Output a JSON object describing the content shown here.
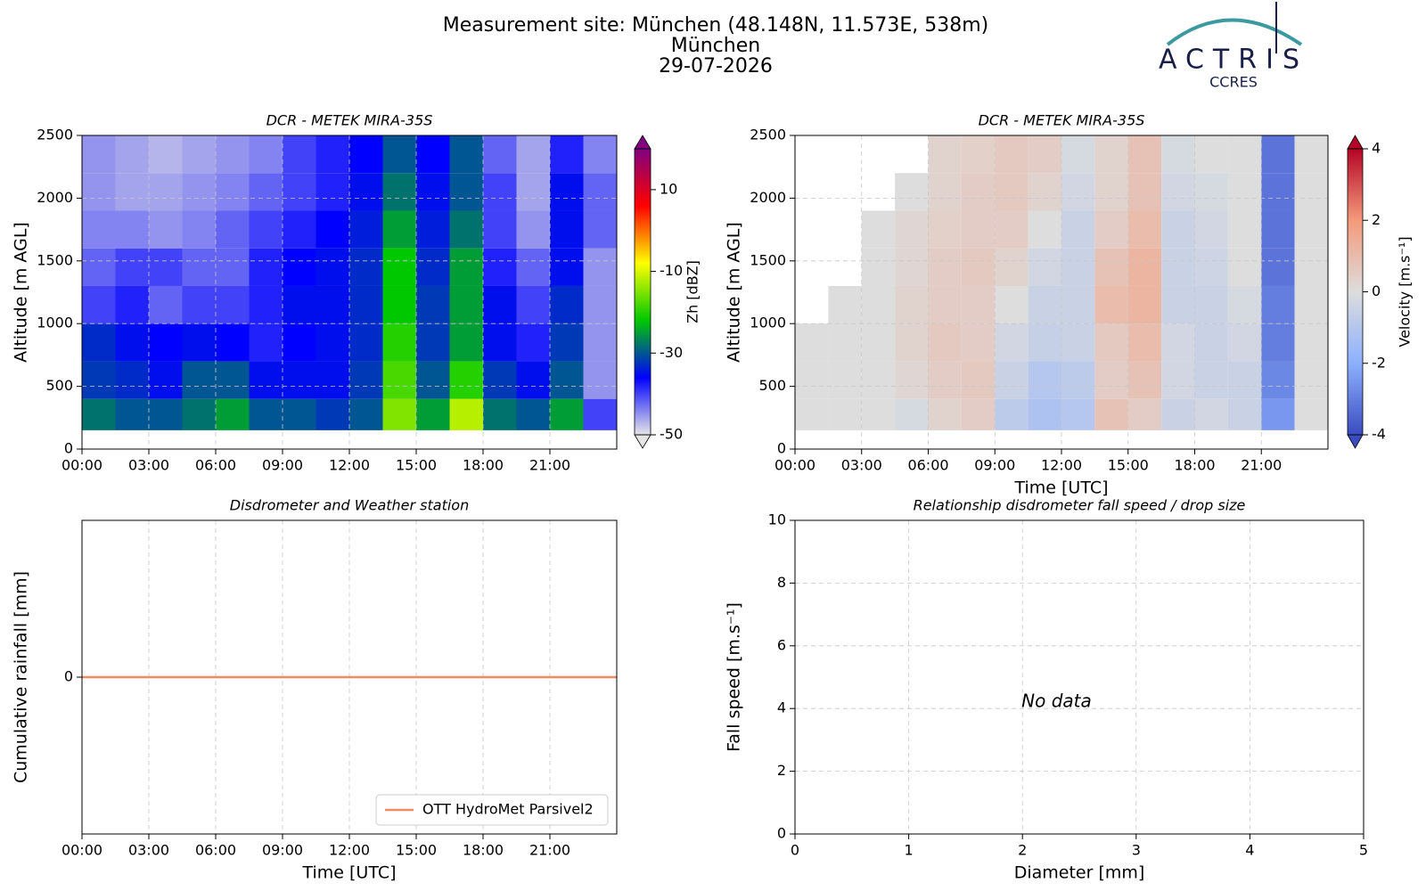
{
  "header": {
    "title_lines": [
      "Measurement site: München (48.148N, 11.573E, 538m)",
      "München",
      "29-07-2026"
    ],
    "logo": {
      "name": "ACTRIS",
      "sub": "CCRES"
    }
  },
  "chart_data": [
    {
      "type": "heatmap",
      "title": "DCR - METEK MIRA-35S",
      "ylabel": "Altitude [m AGL]",
      "colorbar_label": "Zh [dBZ]",
      "xlim": [
        0,
        24
      ],
      "xticks": [
        {
          "value": 0,
          "label": "00:00"
        },
        {
          "value": 3,
          "label": "03:00"
        },
        {
          "value": 6,
          "label": "06:00"
        },
        {
          "value": 9,
          "label": "09:00"
        },
        {
          "value": 12,
          "label": "12:00"
        },
        {
          "value": 15,
          "label": "15:00"
        },
        {
          "value": 18,
          "label": "18:00"
        },
        {
          "value": 21,
          "label": "21:00"
        }
      ],
      "ylim": [
        0,
        2500
      ],
      "yticks": [
        0,
        500,
        1000,
        1500,
        2000,
        2500
      ],
      "grid": true,
      "zlim": [
        -50,
        20
      ],
      "zticks": [
        -50,
        -30,
        -10,
        10
      ],
      "colormap": [
        "#e6e6e6",
        "#0000ff",
        "#00c800",
        "#ffff00",
        "#ff0000",
        "#800080"
      ],
      "x_edges": [
        0,
        1.5,
        3,
        4.5,
        6,
        7.5,
        9,
        10.5,
        12,
        13.5,
        15,
        16.5,
        18,
        19.5,
        21,
        22.5,
        24
      ],
      "y_edges": [
        150,
        400,
        700,
        1000,
        1300,
        1600,
        1900,
        2200,
        2500
      ],
      "z": [
        [
          -28,
          -30,
          -30,
          -28,
          -25,
          -30,
          -30,
          -32,
          -30,
          -15,
          -25,
          -12,
          -28,
          -30,
          -25,
          -40
        ],
        [
          -32,
          -33,
          -35,
          -30,
          -30,
          -35,
          -35,
          -35,
          -32,
          -18,
          -30,
          -20,
          -32,
          -35,
          -30,
          -45
        ],
        [
          -33,
          -35,
          -36,
          -35,
          -36,
          -38,
          -36,
          -35,
          -33,
          -20,
          -32,
          -25,
          -35,
          -38,
          -32,
          -45
        ],
        [
          -40,
          -38,
          -42,
          -40,
          -40,
          -38,
          -35,
          -35,
          -33,
          -22,
          -32,
          -25,
          -35,
          -40,
          -33,
          -45
        ],
        [
          -42,
          -40,
          -40,
          -42,
          -42,
          -38,
          -36,
          -35,
          -33,
          -22,
          -33,
          -25,
          -38,
          -42,
          -35,
          -45
        ],
        [
          -44,
          -44,
          -45,
          -44,
          -42,
          -40,
          -38,
          -36,
          -34,
          -25,
          -34,
          -28,
          -40,
          -45,
          -35,
          -42
        ],
        [
          -45,
          -46,
          -46,
          -45,
          -44,
          -42,
          -40,
          -38,
          -35,
          -28,
          -35,
          -30,
          -40,
          -46,
          -35,
          -42
        ],
        [
          -45,
          -46,
          -47,
          -46,
          -45,
          -44,
          -40,
          -38,
          -36,
          -30,
          -36,
          -30,
          -42,
          -46,
          -38,
          -44
        ]
      ]
    },
    {
      "type": "heatmap",
      "title": "DCR - METEK MIRA-35S",
      "ylabel": "Altitude [m AGL]",
      "xlabel": "Time [UTC]",
      "colorbar_label": "Velocity [m.s⁻¹]",
      "xlim": [
        0,
        24
      ],
      "xticks": [
        {
          "value": 0,
          "label": "00:00"
        },
        {
          "value": 3,
          "label": "03:00"
        },
        {
          "value": 6,
          "label": "06:00"
        },
        {
          "value": 9,
          "label": "09:00"
        },
        {
          "value": 12,
          "label": "12:00"
        },
        {
          "value": 15,
          "label": "15:00"
        },
        {
          "value": 18,
          "label": "18:00"
        },
        {
          "value": 21,
          "label": "21:00"
        }
      ],
      "ylim": [
        0,
        2500
      ],
      "yticks": [
        0,
        500,
        1000,
        1500,
        2000,
        2500
      ],
      "grid": true,
      "zlim": [
        -4,
        4
      ],
      "zticks": [
        -4,
        -2,
        0,
        2,
        4
      ],
      "colormap": [
        "#3b4cc0",
        "#8db0fe",
        "#dddddd",
        "#f49a7b",
        "#b40426"
      ],
      "x_edges": [
        0,
        1.5,
        3,
        4.5,
        6,
        7.5,
        9,
        10.5,
        12,
        13.5,
        15,
        16.5,
        18,
        19.5,
        21,
        22.5,
        24
      ],
      "y_edges": [
        150,
        400,
        700,
        1000,
        1300,
        1600,
        1900,
        2200,
        2500
      ],
      "z": [
        [
          0,
          0,
          0,
          -0.2,
          0.3,
          0.5,
          -0.8,
          -1.2,
          -1,
          0.8,
          0.5,
          -0.5,
          -0.3,
          -0.5,
          -2.5,
          0
        ],
        [
          0,
          0,
          0,
          0.2,
          0.5,
          0.6,
          -0.5,
          -1,
          -0.8,
          0.5,
          0.8,
          -0.3,
          -0.5,
          -0.5,
          -2.8,
          0
        ],
        [
          0,
          0,
          0,
          0.3,
          0.6,
          0.5,
          -0.3,
          -0.6,
          -0.5,
          0.6,
          1,
          -0.3,
          -0.5,
          -0.3,
          -3,
          0
        ],
        [
          null,
          0,
          0,
          0.3,
          0.5,
          0.5,
          0,
          -0.5,
          -0.5,
          1,
          1.2,
          -0.5,
          -0.5,
          -0.2,
          -3,
          0
        ],
        [
          null,
          null,
          0,
          0.2,
          0.5,
          0.6,
          0.3,
          -0.3,
          -0.5,
          0.8,
          1.2,
          -0.5,
          -0.4,
          0,
          -3.2,
          0
        ],
        [
          null,
          null,
          0,
          0.2,
          0.4,
          0.5,
          0.5,
          0,
          -0.5,
          0.5,
          1,
          -0.5,
          -0.3,
          0,
          -3.2,
          0
        ],
        [
          null,
          null,
          null,
          0,
          0.3,
          0.5,
          0.6,
          0.3,
          -0.3,
          0.3,
          0.8,
          -0.3,
          -0.2,
          0,
          -3.2,
          0
        ],
        [
          null,
          null,
          null,
          null,
          0.3,
          0.4,
          0.6,
          0.5,
          -0.2,
          0.3,
          0.8,
          -0.2,
          0,
          0,
          -3.2,
          0
        ]
      ]
    },
    {
      "type": "line",
      "title": "Disdrometer and Weather station",
      "ylabel": "Cumulative rainfall [mm]",
      "xlabel": "Time [UTC]",
      "xlim": [
        0,
        24
      ],
      "xticks": [
        {
          "value": 0,
          "label": "00:00"
        },
        {
          "value": 3,
          "label": "03:00"
        },
        {
          "value": 6,
          "label": "06:00"
        },
        {
          "value": 9,
          "label": "09:00"
        },
        {
          "value": 12,
          "label": "12:00"
        },
        {
          "value": 15,
          "label": "15:00"
        },
        {
          "value": 18,
          "label": "18:00"
        },
        {
          "value": 21,
          "label": "21:00"
        }
      ],
      "ylim": [
        -0.055,
        0.055
      ],
      "yticks": [
        0
      ],
      "grid": true,
      "legend": "lower right",
      "series": [
        {
          "name": "OTT HydroMet Parsivel2",
          "color": "#ef8a62",
          "x": [
            0,
            24
          ],
          "values": [
            0,
            0
          ]
        }
      ]
    },
    {
      "type": "scatter",
      "title": "Relationship disdrometer fall speed / drop size",
      "ylabel": "Fall speed [m.s⁻¹]",
      "xlabel": "Diameter [mm]",
      "xlim": [
        0,
        5
      ],
      "xticks": [
        0,
        1,
        2,
        3,
        4,
        5
      ],
      "ylim": [
        0,
        10
      ],
      "yticks": [
        0,
        2,
        4,
        6,
        8,
        10
      ],
      "grid": true,
      "annotation": "No data"
    }
  ]
}
